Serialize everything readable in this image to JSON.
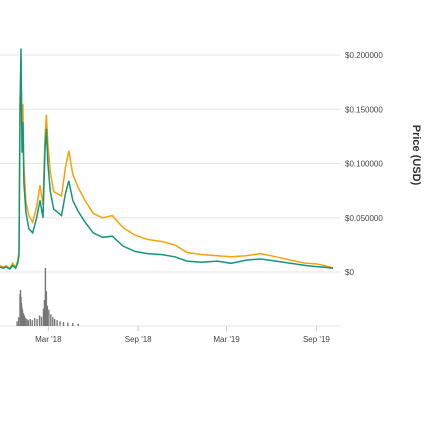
{
  "chart_data": {
    "type": "line",
    "title": "",
    "xlabel": "",
    "ylabel": "Price (USD)",
    "x_ticks": [
      "Mar '18",
      "Sep '18",
      "Mar '19",
      "Sep '19"
    ],
    "y_ticks": [
      "$0",
      "$0.050000",
      "$0.100000",
      "$0.150000",
      "$0.200000"
    ],
    "ylim": [
      0,
      0.2
    ],
    "grid": true,
    "legend": "none",
    "colors": {
      "series_1": "#f5a30a",
      "series_2": "#14967a",
      "volume": "#777777",
      "grid": "#e6e6e6"
    },
    "series": [
      {
        "key": "series_1",
        "points": [
          [
            "2017-11-20",
            0.0064
          ],
          [
            "2017-11-28",
            0.0045
          ],
          [
            "2017-12-05",
            0.0058
          ],
          [
            "2017-12-12",
            0.0034
          ],
          [
            "2017-12-18",
            0.0082
          ],
          [
            "2017-12-24",
            0.0042
          ],
          [
            "2017-12-28",
            0.0102
          ],
          [
            "2017-12-31",
            0.0185
          ],
          [
            "2018-01-02",
            0.16
          ],
          [
            "2018-01-04",
            0.195
          ],
          [
            "2018-01-06",
            0.125
          ],
          [
            "2018-01-08",
            0.155
          ],
          [
            "2018-01-10",
            0.098
          ],
          [
            "2018-01-14",
            0.065
          ],
          [
            "2018-01-20",
            0.052
          ],
          [
            "2018-01-28",
            0.046
          ],
          [
            "2018-02-05",
            0.06
          ],
          [
            "2018-02-12",
            0.08
          ],
          [
            "2018-02-18",
            0.062
          ],
          [
            "2018-02-22",
            0.123
          ],
          [
            "2018-02-25",
            0.145
          ],
          [
            "2018-02-28",
            0.118
          ],
          [
            "2018-03-05",
            0.092
          ],
          [
            "2018-03-12",
            0.074
          ],
          [
            "2018-03-20",
            0.072
          ],
          [
            "2018-03-28",
            0.07
          ],
          [
            "2018-04-05",
            0.096
          ],
          [
            "2018-04-12",
            0.112
          ],
          [
            "2018-04-20",
            0.09
          ],
          [
            "2018-05-01",
            0.078
          ],
          [
            "2018-05-15",
            0.066
          ],
          [
            "2018-06-01",
            0.054
          ],
          [
            "2018-06-20",
            0.05
          ],
          [
            "2018-07-10",
            0.052
          ],
          [
            "2018-08-01",
            0.041
          ],
          [
            "2018-08-25",
            0.034
          ],
          [
            "2018-09-20",
            0.03
          ],
          [
            "2018-10-20",
            0.028
          ],
          [
            "2018-11-15",
            0.025
          ],
          [
            "2018-12-10",
            0.018
          ],
          [
            "2019-01-10",
            0.016
          ],
          [
            "2019-02-10",
            0.015
          ],
          [
            "2019-03-10",
            0.014
          ],
          [
            "2019-04-10",
            0.015
          ],
          [
            "2019-05-10",
            0.017
          ],
          [
            "2019-06-10",
            0.014
          ],
          [
            "2019-07-10",
            0.011
          ],
          [
            "2019-08-10",
            0.008
          ],
          [
            "2019-09-01",
            0.0075
          ],
          [
            "2019-09-20",
            0.0055
          ],
          [
            "2019-10-05",
            0.0038
          ]
        ]
      },
      {
        "key": "series_2",
        "points": [
          [
            "2017-11-20",
            0.005
          ],
          [
            "2017-11-28",
            0.0035
          ],
          [
            "2017-12-05",
            0.0045
          ],
          [
            "2017-12-12",
            0.0028
          ],
          [
            "2017-12-18",
            0.006
          ],
          [
            "2017-12-24",
            0.0035
          ],
          [
            "2017-12-28",
            0.008
          ],
          [
            "2017-12-31",
            0.015
          ],
          [
            "2018-01-02",
            0.145
          ],
          [
            "2018-01-04",
            0.206
          ],
          [
            "2018-01-06",
            0.11
          ],
          [
            "2018-01-08",
            0.138
          ],
          [
            "2018-01-10",
            0.082
          ],
          [
            "2018-01-14",
            0.055
          ],
          [
            "2018-01-20",
            0.04
          ],
          [
            "2018-01-28",
            0.036
          ],
          [
            "2018-02-05",
            0.05
          ],
          [
            "2018-02-12",
            0.066
          ],
          [
            "2018-02-18",
            0.05
          ],
          [
            "2018-02-22",
            0.11
          ],
          [
            "2018-02-25",
            0.132
          ],
          [
            "2018-02-28",
            0.1
          ],
          [
            "2018-03-05",
            0.074
          ],
          [
            "2018-03-12",
            0.058
          ],
          [
            "2018-03-20",
            0.055
          ],
          [
            "2018-03-28",
            0.052
          ],
          [
            "2018-04-05",
            0.072
          ],
          [
            "2018-04-12",
            0.084
          ],
          [
            "2018-04-20",
            0.066
          ],
          [
            "2018-05-01",
            0.056
          ],
          [
            "2018-05-15",
            0.046
          ],
          [
            "2018-06-01",
            0.036
          ],
          [
            "2018-06-20",
            0.032
          ],
          [
            "2018-07-10",
            0.033
          ],
          [
            "2018-08-01",
            0.024
          ],
          [
            "2018-08-25",
            0.019
          ],
          [
            "2018-09-20",
            0.017
          ],
          [
            "2018-10-20",
            0.016
          ],
          [
            "2018-11-15",
            0.014
          ],
          [
            "2018-12-10",
            0.01
          ],
          [
            "2019-01-10",
            0.009
          ],
          [
            "2019-02-10",
            0.01
          ],
          [
            "2019-03-10",
            0.008
          ],
          [
            "2019-04-10",
            0.011
          ],
          [
            "2019-05-10",
            0.012
          ],
          [
            "2019-06-10",
            0.01
          ],
          [
            "2019-07-10",
            0.008
          ],
          [
            "2019-08-10",
            0.006
          ],
          [
            "2019-09-01",
            0.005
          ],
          [
            "2019-09-20",
            0.0042
          ],
          [
            "2019-10-05",
            0.0035
          ]
        ]
      }
    ],
    "volume": {
      "key": "volume",
      "relative_values": [
        [
          "2017-12-27",
          0.08
        ],
        [
          "2017-12-30",
          0.15
        ],
        [
          "2018-01-02",
          0.55
        ],
        [
          "2018-01-03",
          0.62
        ],
        [
          "2018-01-04",
          0.5
        ],
        [
          "2018-01-05",
          0.4
        ],
        [
          "2018-01-06",
          0.32
        ],
        [
          "2018-01-07",
          0.28
        ],
        [
          "2018-01-09",
          0.22
        ],
        [
          "2018-01-11",
          0.18
        ],
        [
          "2018-01-13",
          0.14
        ],
        [
          "2018-01-16",
          0.12
        ],
        [
          "2018-01-19",
          0.1
        ],
        [
          "2018-01-23",
          0.12
        ],
        [
          "2018-01-27",
          0.1
        ],
        [
          "2018-02-01",
          0.14
        ],
        [
          "2018-02-06",
          0.12
        ],
        [
          "2018-02-11",
          0.18
        ],
        [
          "2018-02-15",
          0.16
        ],
        [
          "2018-02-19",
          0.3
        ],
        [
          "2018-02-21",
          0.45
        ],
        [
          "2018-02-23",
          1.0
        ],
        [
          "2018-02-25",
          0.6
        ],
        [
          "2018-02-27",
          0.35
        ],
        [
          "2018-03-02",
          0.28
        ],
        [
          "2018-03-06",
          0.2
        ],
        [
          "2018-03-10",
          0.15
        ],
        [
          "2018-03-14",
          0.12
        ],
        [
          "2018-03-19",
          0.1
        ],
        [
          "2018-03-25",
          0.08
        ],
        [
          "2018-04-01",
          0.07
        ],
        [
          "2018-04-10",
          0.06
        ],
        [
          "2018-04-20",
          0.05
        ],
        [
          "2018-05-01",
          0.04
        ]
      ]
    }
  }
}
